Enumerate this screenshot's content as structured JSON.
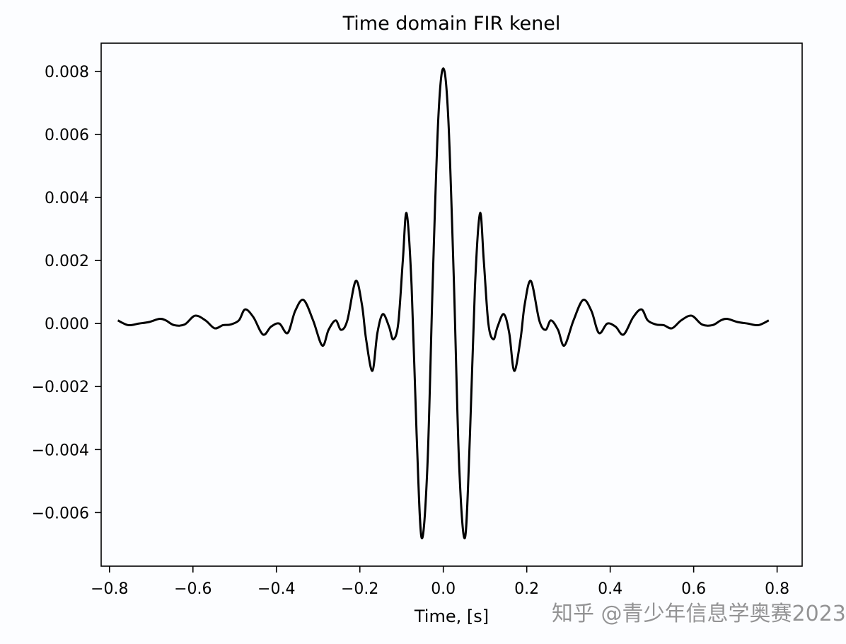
{
  "chart_data": {
    "type": "line",
    "title": "Time domain FIR kenel",
    "xlabel": "Time, [s]",
    "ylabel": "",
    "xlim": [
      -0.82,
      0.86
    ],
    "ylim": [
      -0.0077,
      0.0089
    ],
    "x_ticks": [
      -0.8,
      -0.6,
      -0.4,
      -0.2,
      0.0,
      0.2,
      0.4,
      0.6,
      0.8
    ],
    "x_tick_labels": [
      "−0.8",
      "−0.6",
      "−0.4",
      "−0.2",
      "0.0",
      "0.2",
      "0.4",
      "0.6",
      "0.8"
    ],
    "y_ticks": [
      0.008,
      0.006,
      0.004,
      0.002,
      0.0,
      -0.002,
      -0.004,
      -0.006
    ],
    "y_tick_labels": [
      "0.008",
      "0.006",
      "0.004",
      "0.002",
      "0.000",
      "−0.002",
      "−0.004",
      "−0.006"
    ],
    "grid": false,
    "series": [
      {
        "color": "#000000",
        "x": [
          -0.78,
          -0.755,
          -0.73,
          -0.705,
          -0.68,
          -0.665,
          -0.645,
          -0.62,
          -0.595,
          -0.57,
          -0.548,
          -0.528,
          -0.51,
          -0.49,
          -0.475,
          -0.455,
          -0.432,
          -0.413,
          -0.393,
          -0.373,
          -0.355,
          -0.335,
          -0.312,
          -0.29,
          -0.275,
          -0.258,
          -0.245,
          -0.23,
          -0.21,
          -0.195,
          -0.185,
          -0.17,
          -0.158,
          -0.145,
          -0.13,
          -0.12,
          -0.108,
          -0.097,
          -0.088,
          -0.076,
          -0.064,
          -0.052,
          -0.038,
          -0.025,
          -0.012,
          0.0,
          0.012,
          0.025,
          0.038,
          0.052,
          0.064,
          0.076,
          0.088,
          0.097,
          0.108,
          0.12,
          0.13,
          0.145,
          0.158,
          0.17,
          0.185,
          0.195,
          0.21,
          0.23,
          0.245,
          0.258,
          0.275,
          0.29,
          0.312,
          0.335,
          0.355,
          0.373,
          0.393,
          0.413,
          0.432,
          0.455,
          0.475,
          0.49,
          0.51,
          0.528,
          0.548,
          0.57,
          0.595,
          0.62,
          0.645,
          0.665,
          0.68,
          0.705,
          0.73,
          0.755,
          0.78
        ],
        "y": [
          0.0001,
          -5e-05,
          0.0,
          5e-05,
          0.00015,
          0.0001,
          -5e-05,
          -3e-05,
          0.00025,
          0.0001,
          -0.00015,
          -5e-05,
          -3e-05,
          0.0001,
          0.00045,
          0.0002,
          -0.00035,
          -0.0001,
          0.0,
          -0.0003,
          0.0004,
          0.00075,
          0.0001,
          -0.0007,
          -0.0002,
          0.0001,
          -0.0002,
          0.0001,
          0.00135,
          0.0006,
          -0.0005,
          -0.0015,
          -0.0003,
          0.0003,
          -0.0001,
          -0.0005,
          0.0,
          0.002,
          0.0035,
          0.0012,
          -0.0035,
          -0.0068,
          -0.0045,
          0.0015,
          0.0065,
          0.0081,
          0.0065,
          0.0015,
          -0.0045,
          -0.0068,
          -0.0035,
          0.0012,
          0.0035,
          0.002,
          0.0,
          -0.0005,
          -0.0001,
          0.0003,
          -0.0003,
          -0.0015,
          -0.0005,
          0.0006,
          0.00135,
          0.0001,
          -0.0002,
          0.0001,
          -0.0002,
          -0.0007,
          0.0001,
          0.00075,
          0.0004,
          -0.0003,
          0.0,
          -0.0001,
          -0.00035,
          0.0002,
          0.00045,
          0.0001,
          -3e-05,
          -5e-05,
          -0.00015,
          0.0001,
          0.00025,
          -3e-05,
          -5e-05,
          0.0001,
          0.00015,
          5e-05,
          0.0,
          -5e-05,
          0.0001
        ]
      }
    ]
  },
  "watermark": {
    "text": "知乎 @青少年信息学奥赛2023"
  }
}
